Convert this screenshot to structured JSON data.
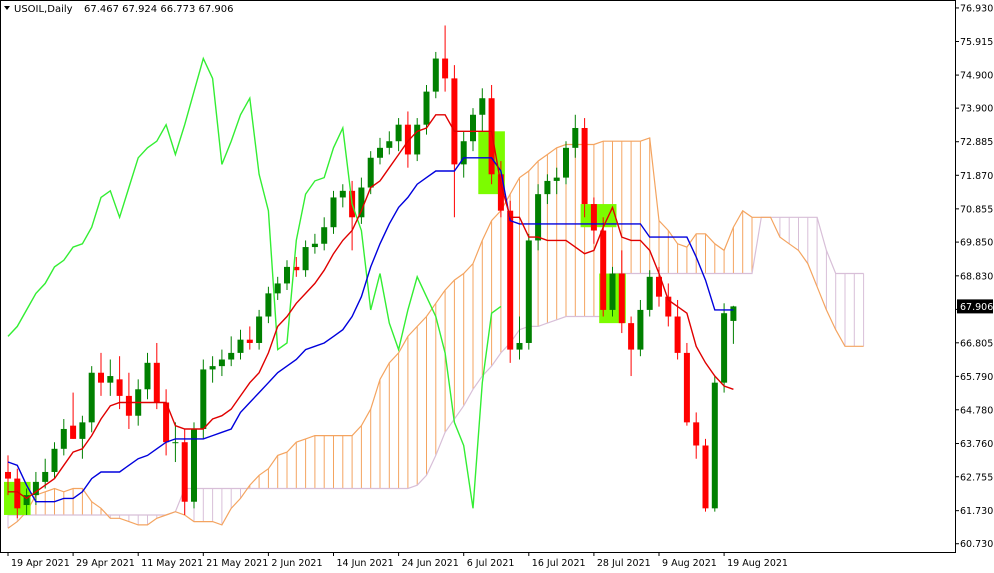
{
  "header": {
    "arrow_icon": "triangle-down-icon",
    "symbol": "USOIL,Daily",
    "ohlc": "67.467 67.924 66.773 67.906"
  },
  "colors": {
    "background": "#ffffff",
    "axis": "#000000",
    "bull": "#008000",
    "bear": "#ff0000",
    "tenkan": "#e00000",
    "kijun": "#0000dd",
    "chikou": "#33ee33",
    "cloud_bull": "#f4a460",
    "cloud_bear": "#d8bfd8",
    "highlight": "#7cfc00",
    "price_label_bg": "#000000",
    "price_label_text": "#ffffff"
  },
  "chart_data": {
    "type": "candlestick",
    "indicator": "Ichimoku Kinko Hyo",
    "ylim": [
      60.48,
      77.17
    ],
    "y_ticks": [
      "76.930",
      "75.915",
      "74.900",
      "73.900",
      "72.885",
      "71.870",
      "70.855",
      "69.850",
      "68.830",
      "67.815",
      "66.805",
      "65.790",
      "64.780",
      "63.760",
      "62.755",
      "61.730",
      "60.730"
    ],
    "x_ticks": [
      "19 Apr 2021",
      "29 Apr 2021",
      "11 May 2021",
      "21 May 2021",
      "2 Jun 2021",
      "14 Jun 2021",
      "24 Jun 2021",
      "6 Jul 2021",
      "16 Jul 2021",
      "28 Jul 2021",
      "9 Aug 2021",
      "19 Aug 2021"
    ],
    "current_price": "67.906",
    "last_close": 67.906,
    "candles": [
      {
        "o": 62.9,
        "h": 63.4,
        "l": 62.2,
        "c": 62.7
      },
      {
        "o": 62.7,
        "h": 63.0,
        "l": 61.5,
        "c": 61.8
      },
      {
        "o": 61.9,
        "h": 62.4,
        "l": 61.6,
        "c": 62.2
      },
      {
        "o": 62.2,
        "h": 62.9,
        "l": 61.9,
        "c": 62.6
      },
      {
        "o": 62.6,
        "h": 63.3,
        "l": 62.4,
        "c": 62.9
      },
      {
        "o": 62.9,
        "h": 63.8,
        "l": 62.7,
        "c": 63.6
      },
      {
        "o": 63.6,
        "h": 64.5,
        "l": 63.4,
        "c": 64.2
      },
      {
        "o": 64.3,
        "h": 65.3,
        "l": 63.9,
        "c": 63.9
      },
      {
        "o": 63.9,
        "h": 64.6,
        "l": 63.3,
        "c": 64.4
      },
      {
        "o": 64.4,
        "h": 66.1,
        "l": 64.1,
        "c": 65.9
      },
      {
        "o": 65.9,
        "h": 66.5,
        "l": 65.2,
        "c": 65.6
      },
      {
        "o": 65.6,
        "h": 66.3,
        "l": 65.2,
        "c": 65.8
      },
      {
        "o": 65.7,
        "h": 66.4,
        "l": 64.8,
        "c": 65.2
      },
      {
        "o": 65.2,
        "h": 65.9,
        "l": 64.2,
        "c": 64.6
      },
      {
        "o": 64.6,
        "h": 65.7,
        "l": 64.3,
        "c": 65.4
      },
      {
        "o": 65.4,
        "h": 66.5,
        "l": 65.1,
        "c": 66.2
      },
      {
        "o": 66.2,
        "h": 66.8,
        "l": 64.8,
        "c": 65.0
      },
      {
        "o": 65.0,
        "h": 65.4,
        "l": 63.4,
        "c": 63.8
      },
      {
        "o": 63.8,
        "h": 64.4,
        "l": 63.2,
        "c": 63.8
      },
      {
        "o": 63.8,
        "h": 64.2,
        "l": 61.6,
        "c": 62.0
      },
      {
        "o": 62.0,
        "h": 64.4,
        "l": 61.8,
        "c": 64.2
      },
      {
        "o": 64.2,
        "h": 66.3,
        "l": 63.9,
        "c": 66.0
      },
      {
        "o": 66.0,
        "h": 66.4,
        "l": 65.6,
        "c": 66.1
      },
      {
        "o": 66.1,
        "h": 66.6,
        "l": 65.8,
        "c": 66.3
      },
      {
        "o": 66.3,
        "h": 67.0,
        "l": 66.1,
        "c": 66.5
      },
      {
        "o": 66.5,
        "h": 67.2,
        "l": 66.3,
        "c": 66.9
      },
      {
        "o": 66.9,
        "h": 67.3,
        "l": 66.6,
        "c": 66.8
      },
      {
        "o": 66.8,
        "h": 67.8,
        "l": 66.6,
        "c": 67.6
      },
      {
        "o": 67.6,
        "h": 68.5,
        "l": 67.4,
        "c": 68.3
      },
      {
        "o": 68.3,
        "h": 68.8,
        "l": 68.1,
        "c": 68.6
      },
      {
        "o": 68.6,
        "h": 69.3,
        "l": 68.4,
        "c": 69.1
      },
      {
        "o": 69.1,
        "h": 69.4,
        "l": 68.8,
        "c": 69.0
      },
      {
        "o": 69.0,
        "h": 69.9,
        "l": 68.8,
        "c": 69.7
      },
      {
        "o": 69.7,
        "h": 70.1,
        "l": 69.5,
        "c": 69.8
      },
      {
        "o": 69.8,
        "h": 70.6,
        "l": 69.6,
        "c": 70.3
      },
      {
        "o": 70.3,
        "h": 71.4,
        "l": 70.1,
        "c": 71.2
      },
      {
        "o": 71.2,
        "h": 71.6,
        "l": 70.9,
        "c": 71.4
      },
      {
        "o": 71.4,
        "h": 71.7,
        "l": 69.6,
        "c": 70.6
      },
      {
        "o": 70.6,
        "h": 71.8,
        "l": 70.4,
        "c": 71.5
      },
      {
        "o": 71.5,
        "h": 72.6,
        "l": 71.3,
        "c": 72.4
      },
      {
        "o": 72.4,
        "h": 73.0,
        "l": 72.2,
        "c": 72.7
      },
      {
        "o": 72.7,
        "h": 73.2,
        "l": 72.5,
        "c": 72.9
      },
      {
        "o": 72.9,
        "h": 73.6,
        "l": 72.6,
        "c": 73.4
      },
      {
        "o": 73.4,
        "h": 73.8,
        "l": 72.1,
        "c": 72.5
      },
      {
        "o": 72.5,
        "h": 73.6,
        "l": 72.3,
        "c": 73.4
      },
      {
        "o": 73.4,
        "h": 74.6,
        "l": 73.1,
        "c": 74.4
      },
      {
        "o": 74.4,
        "h": 75.6,
        "l": 74.2,
        "c": 75.4
      },
      {
        "o": 75.4,
        "h": 76.4,
        "l": 74.4,
        "c": 74.8
      },
      {
        "o": 74.8,
        "h": 75.2,
        "l": 70.6,
        "c": 72.2
      },
      {
        "o": 72.2,
        "h": 73.2,
        "l": 71.8,
        "c": 72.9
      },
      {
        "o": 72.9,
        "h": 73.9,
        "l": 72.6,
        "c": 73.7
      },
      {
        "o": 73.7,
        "h": 74.5,
        "l": 73.2,
        "c": 74.2
      },
      {
        "o": 74.2,
        "h": 74.6,
        "l": 71.6,
        "c": 71.9
      },
      {
        "o": 71.9,
        "h": 72.3,
        "l": 70.6,
        "c": 70.8
      },
      {
        "o": 70.8,
        "h": 71.1,
        "l": 66.2,
        "c": 66.6
      },
      {
        "o": 66.6,
        "h": 67.6,
        "l": 66.3,
        "c": 66.8
      },
      {
        "o": 66.8,
        "h": 70.1,
        "l": 66.6,
        "c": 69.9
      },
      {
        "o": 69.9,
        "h": 71.6,
        "l": 69.6,
        "c": 71.3
      },
      {
        "o": 71.3,
        "h": 71.9,
        "l": 71.0,
        "c": 71.7
      },
      {
        "o": 71.7,
        "h": 72.1,
        "l": 71.3,
        "c": 71.8
      },
      {
        "o": 71.8,
        "h": 72.9,
        "l": 71.6,
        "c": 72.7
      },
      {
        "o": 72.7,
        "h": 73.7,
        "l": 72.4,
        "c": 73.3
      },
      {
        "o": 73.3,
        "h": 73.6,
        "l": 70.6,
        "c": 71.0
      },
      {
        "o": 71.0,
        "h": 71.2,
        "l": 69.8,
        "c": 70.2
      },
      {
        "o": 70.2,
        "h": 70.6,
        "l": 67.6,
        "c": 67.8
      },
      {
        "o": 67.8,
        "h": 69.1,
        "l": 67.6,
        "c": 68.9
      },
      {
        "o": 68.9,
        "h": 69.6,
        "l": 67.1,
        "c": 67.4
      },
      {
        "o": 67.4,
        "h": 67.6,
        "l": 65.8,
        "c": 66.6
      },
      {
        "o": 66.6,
        "h": 68.1,
        "l": 66.4,
        "c": 67.8
      },
      {
        "o": 67.8,
        "h": 69.0,
        "l": 67.6,
        "c": 68.8
      },
      {
        "o": 68.8,
        "h": 69.1,
        "l": 67.9,
        "c": 68.2
      },
      {
        "o": 68.2,
        "h": 68.6,
        "l": 67.3,
        "c": 67.6
      },
      {
        "o": 67.6,
        "h": 68.1,
        "l": 66.3,
        "c": 66.5
      },
      {
        "o": 66.5,
        "h": 66.8,
        "l": 64.3,
        "c": 64.4
      },
      {
        "o": 64.4,
        "h": 64.7,
        "l": 63.3,
        "c": 63.7
      },
      {
        "o": 63.7,
        "h": 63.9,
        "l": 61.7,
        "c": 61.8
      },
      {
        "o": 61.8,
        "h": 65.8,
        "l": 61.7,
        "c": 65.6
      },
      {
        "o": 65.6,
        "h": 68.0,
        "l": 65.3,
        "c": 67.7
      },
      {
        "o": 67.467,
        "h": 67.924,
        "l": 66.773,
        "c": 67.906
      }
    ],
    "series": {
      "tenkan": [
        62.3,
        62.3,
        62.1,
        62.3,
        62.5,
        62.7,
        63.1,
        63.5,
        63.6,
        64.0,
        64.5,
        64.9,
        65.0,
        65.0,
        65.0,
        65.0,
        65.0,
        65.0,
        64.3,
        64.2,
        64.2,
        64.2,
        64.5,
        64.6,
        64.8,
        65.2,
        65.6,
        65.9,
        66.5,
        67.3,
        67.6,
        68.0,
        68.3,
        68.6,
        69.0,
        69.5,
        69.9,
        70.2,
        70.8,
        71.5,
        71.7,
        72.1,
        72.5,
        72.9,
        73.2,
        73.3,
        73.7,
        73.7,
        73.2,
        73.2,
        73.2,
        73.2,
        73.2,
        71.6,
        70.6,
        70.6,
        70.0,
        70.0,
        69.9,
        69.9,
        69.9,
        69.7,
        69.5,
        69.6,
        70.3,
        70.9,
        70.0,
        69.9,
        69.9,
        69.6,
        68.9,
        68.1,
        67.9,
        67.7,
        66.7,
        66.2,
        65.8,
        65.5,
        65.4
      ],
      "kijun": [
        63.2,
        63.1,
        62.5,
        62.0,
        62.0,
        62.0,
        62.1,
        62.1,
        62.3,
        62.7,
        62.9,
        62.9,
        62.9,
        63.1,
        63.3,
        63.4,
        63.6,
        63.8,
        63.9,
        63.9,
        63.9,
        63.9,
        64.0,
        64.1,
        64.2,
        64.7,
        65.0,
        65.3,
        65.6,
        65.9,
        66.1,
        66.3,
        66.6,
        66.7,
        66.8,
        67.0,
        67.2,
        67.6,
        68.2,
        69.1,
        69.8,
        70.4,
        70.9,
        71.2,
        71.6,
        71.8,
        72.0,
        72.0,
        72.0,
        72.4,
        72.4,
        72.4,
        72.4,
        72.0,
        70.5,
        70.4,
        70.4,
        70.4,
        70.4,
        70.4,
        70.4,
        70.4,
        70.4,
        70.4,
        70.4,
        70.4,
        70.4,
        70.4,
        70.4,
        70.0,
        70.0,
        70.0,
        70.0,
        70.0,
        69.4,
        68.7,
        67.8,
        67.8,
        67.8
      ],
      "chikou": [
        67.0,
        67.3,
        67.8,
        68.3,
        68.6,
        69.1,
        69.3,
        69.7,
        69.8,
        70.3,
        71.2,
        71.4,
        70.6,
        71.5,
        72.4,
        72.7,
        72.9,
        73.4,
        72.5,
        73.4,
        74.4,
        75.4,
        74.8,
        72.2,
        72.9,
        73.7,
        74.2,
        71.9,
        70.8,
        66.6,
        66.8,
        69.9,
        71.3,
        71.7,
        71.8,
        72.7,
        73.3,
        71.0,
        70.2,
        67.8,
        68.9,
        67.4,
        66.6,
        67.8,
        68.8,
        68.2,
        67.6,
        66.5,
        64.4,
        63.7,
        61.8,
        65.6,
        67.7,
        67.906
      ],
      "senkou_a": [
        61.2,
        61.4,
        61.7,
        62.2,
        62.3,
        62.4,
        62.3,
        62.4,
        62.4,
        62.0,
        61.8,
        61.5,
        61.5,
        61.4,
        61.3,
        61.3,
        61.5,
        61.6,
        61.7,
        61.6,
        61.4,
        61.4,
        61.4,
        61.3,
        61.8,
        62.1,
        62.5,
        62.8,
        63.0,
        63.4,
        63.5,
        63.8,
        63.9,
        64.0,
        64.0,
        64.0,
        64.0,
        64.0,
        64.3,
        64.8,
        65.7,
        66.2,
        66.5,
        67.0,
        67.3,
        67.6,
        68.0,
        68.4,
        68.7,
        68.9,
        69.2,
        69.9,
        70.5,
        70.8,
        71.3,
        71.8,
        72.0,
        72.3,
        72.5,
        72.7,
        72.8,
        72.8,
        72.8,
        72.8,
        72.9,
        72.9,
        72.9,
        72.9,
        72.9,
        73.0,
        70.5,
        70.2,
        69.8,
        69.7,
        70.1,
        70.1,
        69.8,
        69.6,
        70.3,
        70.8,
        70.6,
        70.6,
        70.6,
        70.0,
        69.8,
        69.6,
        69.2,
        68.5,
        67.8,
        67.2,
        66.7,
        66.7,
        66.7
      ],
      "senkou_b": [
        61.6,
        61.6,
        61.6,
        61.6,
        61.6,
        61.6,
        61.6,
        61.6,
        61.6,
        61.6,
        61.6,
        61.6,
        61.6,
        61.6,
        61.6,
        61.6,
        61.6,
        61.6,
        61.7,
        62.4,
        62.4,
        62.4,
        62.4,
        62.4,
        62.4,
        62.4,
        62.4,
        62.4,
        62.4,
        62.4,
        62.4,
        62.4,
        62.4,
        62.4,
        62.4,
        62.4,
        62.4,
        62.4,
        62.4,
        62.4,
        62.4,
        62.4,
        62.4,
        62.4,
        62.5,
        62.8,
        63.4,
        64.1,
        64.5,
        64.9,
        65.4,
        65.8,
        66.1,
        66.5,
        66.8,
        67.2,
        67.3,
        67.3,
        67.4,
        67.5,
        67.6,
        67.6,
        67.6,
        67.6,
        67.6,
        68.9,
        68.9,
        68.9,
        68.9,
        68.9,
        68.9,
        68.9,
        68.9,
        68.9,
        68.9,
        68.9,
        68.9,
        68.9,
        68.9,
        68.9,
        68.9,
        70.6,
        70.6,
        70.6,
        70.6,
        70.6,
        70.6,
        70.6,
        69.6,
        68.9,
        68.9,
        68.9,
        68.9
      ]
    },
    "highlights": [
      {
        "i0": 0,
        "i1": 2,
        "lo": 61.6,
        "hi": 62.6
      },
      {
        "i0": 51,
        "i1": 53,
        "lo": 71.3,
        "hi": 73.2
      },
      {
        "i0": 62,
        "i1": 65,
        "lo": 70.3,
        "hi": 71.0
      },
      {
        "i0": 64,
        "i1": 66,
        "lo": 67.4,
        "hi": 68.9
      }
    ]
  }
}
